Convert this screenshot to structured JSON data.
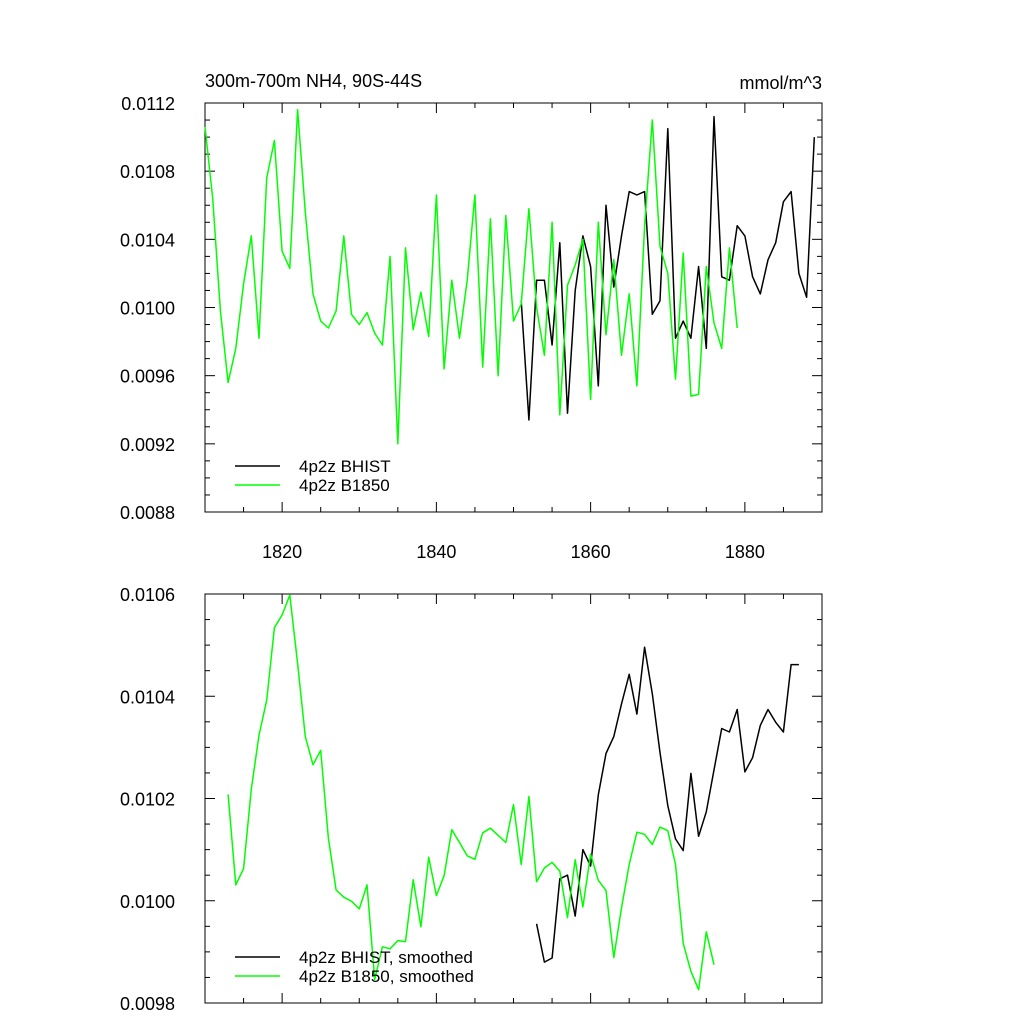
{
  "chart_data": [
    {
      "type": "line",
      "title": "300m-700m NH4, 90S-44S",
      "units": "mmol/m^3",
      "xlim": [
        1810,
        1890
      ],
      "ylim": [
        0.0088,
        0.0112
      ],
      "xticks": [
        1820,
        1840,
        1860,
        1880
      ],
      "yticks": [
        0.0088,
        0.0092,
        0.0096,
        0.01,
        0.0104,
        0.0108,
        0.0112
      ],
      "ytick_labels": [
        "0.0088",
        "0.0092",
        "0.0096",
        "0.0100",
        "0.0104",
        "0.0108",
        "0.0112"
      ],
      "xtick_labels": [
        "1820",
        "1840",
        "1860",
        "1880"
      ],
      "legend": "bottom-left",
      "series": [
        {
          "name": "4p2z BHIST",
          "color": "#000000",
          "x": [
            1851,
            1852,
            1853,
            1854,
            1855,
            1856,
            1857,
            1858,
            1859,
            1860,
            1861,
            1862,
            1863,
            1864,
            1865,
            1866,
            1867,
            1868,
            1869,
            1870,
            1871,
            1872,
            1873,
            1874,
            1875,
            1876,
            1877,
            1878,
            1879,
            1880,
            1881,
            1882,
            1883,
            1884,
            1885,
            1886,
            1887,
            1888,
            1889
          ],
          "y": [
            0.01004,
            0.00934,
            0.01016,
            0.01016,
            0.00978,
            0.01038,
            0.00938,
            0.0101,
            0.01042,
            0.01024,
            0.00954,
            0.0106,
            0.01012,
            0.01042,
            0.01068,
            0.01066,
            0.01068,
            0.00996,
            0.01004,
            0.01105,
            0.00982,
            0.00992,
            0.00982,
            0.01024,
            0.00976,
            0.01112,
            0.01018,
            0.01016,
            0.01048,
            0.01042,
            0.01018,
            0.01008,
            0.01028,
            0.01038,
            0.01062,
            0.01068,
            0.0102,
            0.01006,
            0.011
          ]
        },
        {
          "name": "4p2z B1850",
          "color": "#00ff00",
          "x": [
            1810,
            1811,
            1812,
            1813,
            1814,
            1815,
            1816,
            1817,
            1818,
            1819,
            1820,
            1821,
            1822,
            1823,
            1824,
            1825,
            1826,
            1827,
            1828,
            1829,
            1830,
            1831,
            1832,
            1833,
            1834,
            1835,
            1836,
            1837,
            1838,
            1839,
            1840,
            1841,
            1842,
            1843,
            1844,
            1845,
            1846,
            1847,
            1848,
            1849,
            1850,
            1851,
            1852,
            1853,
            1854,
            1855,
            1856,
            1857,
            1858,
            1859,
            1860,
            1861,
            1862,
            1863,
            1864,
            1865,
            1866,
            1867,
            1868,
            1869,
            1870,
            1871,
            1872,
            1873,
            1874,
            1875,
            1876,
            1877,
            1878,
            1879
          ],
          "y": [
            0.01106,
            0.01064,
            0.00998,
            0.00956,
            0.00976,
            0.01014,
            0.01042,
            0.00982,
            0.01076,
            0.01098,
            0.01033,
            0.01023,
            0.01116,
            0.01056,
            0.01008,
            0.00992,
            0.00988,
            0.00998,
            0.01042,
            0.00996,
            0.0099,
            0.00997,
            0.00985,
            0.00978,
            0.0103,
            0.0092,
            0.01035,
            0.00987,
            0.01009,
            0.00983,
            0.01066,
            0.00964,
            0.01016,
            0.00982,
            0.01016,
            0.01066,
            0.00965,
            0.01052,
            0.0096,
            0.01054,
            0.00992,
            0.01002,
            0.01058,
            0.01,
            0.00972,
            0.0105,
            0.00937,
            0.01013,
            0.01025,
            0.0104,
            0.00946,
            0.0105,
            0.00984,
            0.01028,
            0.00972,
            0.01008,
            0.00954,
            0.01048,
            0.0111,
            0.01036,
            0.0102,
            0.00958,
            0.01032,
            0.00948,
            0.00949,
            0.01024,
            0.00991,
            0.00976,
            0.01035,
            0.00988
          ]
        }
      ]
    },
    {
      "type": "line",
      "xlim": [
        1810,
        1890
      ],
      "ylim": [
        0.0098,
        0.0106
      ],
      "xticks": [
        1820,
        1840,
        1860,
        1880
      ],
      "yticks": [
        0.0098,
        0.01,
        0.0102,
        0.0104,
        0.0106
      ],
      "ytick_labels": [
        "0.0098",
        "0.0100",
        "0.0102",
        "0.0104",
        "0.0106"
      ],
      "legend": "bottom-left",
      "series": [
        {
          "name": "4p2z BHIST, smoothed",
          "color": "#000000",
          "x": [
            1853,
            1854,
            1855,
            1856,
            1857,
            1858,
            1859,
            1860,
            1861,
            1862,
            1863,
            1864,
            1865,
            1866,
            1867,
            1868,
            1869,
            1870,
            1871,
            1872,
            1873,
            1874,
            1875,
            1876,
            1877,
            1878,
            1879,
            1880,
            1881,
            1882,
            1883,
            1884,
            1885,
            1886,
            1887
          ],
          "y": [
            0.009955,
            0.00988,
            0.009888,
            0.010043,
            0.01005,
            0.00997,
            0.0101,
            0.010068,
            0.010207,
            0.010288,
            0.010321,
            0.010385,
            0.010443,
            0.010365,
            0.010496,
            0.010405,
            0.01029,
            0.010186,
            0.010121,
            0.010098,
            0.010249,
            0.010126,
            0.010174,
            0.010256,
            0.010337,
            0.01033,
            0.010374,
            0.010252,
            0.01028,
            0.010343,
            0.010374,
            0.010349,
            0.01033,
            0.010462,
            0.010462
          ]
        },
        {
          "name": "4p2z B1850, smoothed",
          "color": "#00ff00",
          "x": [
            1813,
            1814,
            1815,
            1816,
            1817,
            1818,
            1819,
            1820,
            1821,
            1822,
            1823,
            1824,
            1825,
            1826,
            1827,
            1828,
            1829,
            1830,
            1831,
            1832,
            1833,
            1834,
            1835,
            1836,
            1837,
            1838,
            1839,
            1840,
            1841,
            1842,
            1843,
            1844,
            1845,
            1846,
            1847,
            1848,
            1849,
            1850,
            1851,
            1852,
            1853,
            1854,
            1855,
            1856,
            1857,
            1858,
            1859,
            1860,
            1861,
            1862,
            1863,
            1864,
            1865,
            1866,
            1867,
            1868,
            1869,
            1870,
            1871,
            1872,
            1873,
            1874,
            1875,
            1876
          ],
          "y": [
            0.010208,
            0.010031,
            0.010063,
            0.010218,
            0.010324,
            0.010392,
            0.010534,
            0.010559,
            0.010598,
            0.010464,
            0.010321,
            0.010266,
            0.010294,
            0.010122,
            0.010021,
            0.010007,
            0.009999,
            0.009984,
            0.010031,
            0.009846,
            0.00991,
            0.009906,
            0.009922,
            0.00992,
            0.010041,
            0.009949,
            0.010085,
            0.01001,
            0.010049,
            0.010139,
            0.010114,
            0.010088,
            0.010081,
            0.010133,
            0.010142,
            0.010128,
            0.010114,
            0.010188,
            0.010071,
            0.010204,
            0.010037,
            0.010064,
            0.010075,
            0.010058,
            0.009967,
            0.01008,
            0.009988,
            0.010091,
            0.01004,
            0.01002,
            0.009889,
            0.009986,
            0.010071,
            0.010134,
            0.01013,
            0.01011,
            0.010144,
            0.010137,
            0.010071,
            0.009917,
            0.009862,
            0.009826,
            0.009939,
            0.009875
          ]
        }
      ]
    }
  ]
}
